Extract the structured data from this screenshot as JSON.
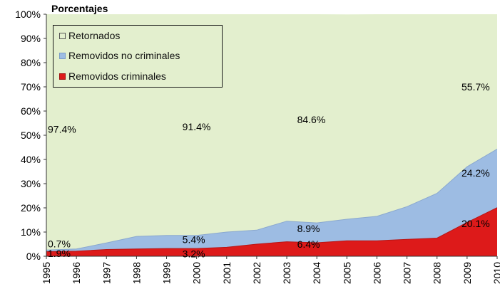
{
  "chart_data": {
    "type": "area",
    "stacked": true,
    "title": "Porcentajes",
    "x": [
      "1995",
      "1996",
      "1997",
      "1998",
      "1999",
      "2000",
      "2001",
      "2002",
      "2003",
      "2004",
      "2005",
      "2006",
      "2007",
      "2008",
      "2009",
      "2010"
    ],
    "ylim": [
      0,
      100
    ],
    "yticks": [
      "0%",
      "10%",
      "20%",
      "30%",
      "40%",
      "50%",
      "60%",
      "70%",
      "80%",
      "90%",
      "100%"
    ],
    "series": [
      {
        "name": "Removidos criminales",
        "color": "#dd1a1a",
        "values": [
          1.9,
          2.1,
          2.8,
          3.0,
          3.2,
          3.2,
          3.7,
          5.0,
          6.0,
          5.6,
          6.4,
          6.4,
          7.0,
          7.5,
          14.0,
          20.1
        ]
      },
      {
        "name": "Removidos no criminales",
        "color": "#9dbce3",
        "values": [
          0.7,
          0.9,
          2.7,
          5.2,
          5.4,
          5.4,
          6.3,
          5.8,
          8.5,
          8.2,
          8.9,
          10.1,
          13.5,
          18.5,
          23.0,
          24.2
        ]
      },
      {
        "name": "Retornados",
        "color": "#e3efce",
        "values": [
          97.4,
          97.0,
          94.5,
          91.8,
          91.4,
          91.4,
          90.0,
          89.2,
          85.5,
          86.2,
          84.6,
          83.5,
          79.5,
          74.0,
          63.0,
          55.7
        ]
      }
    ],
    "data_labels": [
      {
        "text": "97.4%"
      },
      {
        "text": "0.7%"
      },
      {
        "text": "1.9%"
      },
      {
        "text": "91.4%"
      },
      {
        "text": "5.4%"
      },
      {
        "text": "3.2%"
      },
      {
        "text": "84.6%"
      },
      {
        "text": "8.9%"
      },
      {
        "text": "6.4%"
      },
      {
        "text": "55.7%"
      },
      {
        "text": "24.2%"
      },
      {
        "text": "20.1%"
      }
    ],
    "legend": {
      "position": "top-left",
      "items": [
        "Retornados",
        "Removidos no criminales",
        "Removidos criminales"
      ]
    },
    "grid": false
  }
}
